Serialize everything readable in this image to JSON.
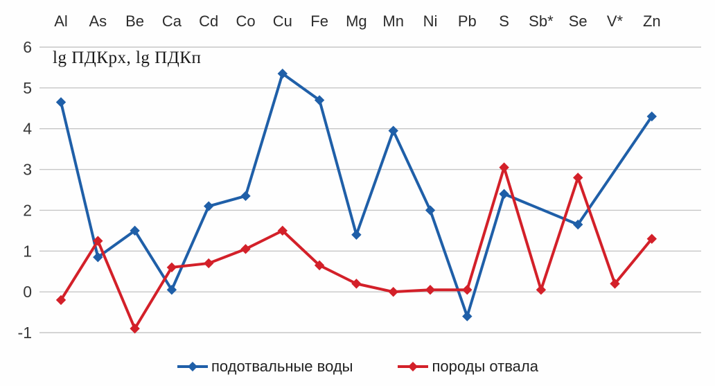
{
  "chart_data": {
    "type": "line",
    "title": "lg ПДКрх, lg ПДКп",
    "categories": [
      "Al",
      "As",
      "Be",
      "Ca",
      "Cd",
      "Co",
      "Cu",
      "Fe",
      "Mg",
      "Mn",
      "Ni",
      "Pb",
      "S",
      "Sb*",
      "Se",
      "V*",
      "Zn"
    ],
    "series": [
      {
        "name": "подотвальные воды",
        "color": "#1f5fa8",
        "marker": "diamond",
        "values": [
          4.65,
          0.85,
          1.5,
          0.05,
          2.1,
          2.35,
          5.35,
          4.7,
          1.4,
          3.95,
          2.0,
          -0.6,
          2.4,
          null,
          1.65,
          null,
          4.3
        ]
      },
      {
        "name": "породы отвала",
        "color": "#d32029",
        "marker": "diamond",
        "values": [
          -0.2,
          1.25,
          -0.9,
          0.6,
          0.7,
          1.05,
          1.5,
          0.65,
          0.2,
          0.0,
          0.05,
          0.05,
          3.05,
          0.05,
          2.8,
          0.2,
          1.3
        ]
      }
    ],
    "ylim": [
      -1,
      6
    ],
    "yticks": [
      6,
      5,
      4,
      3,
      2,
      1,
      0,
      -1
    ],
    "grid": true,
    "x_labels_position": "top",
    "legend_position": "bottom",
    "colors": {
      "grid": "#c6c6c6",
      "text": "#383838"
    }
  }
}
